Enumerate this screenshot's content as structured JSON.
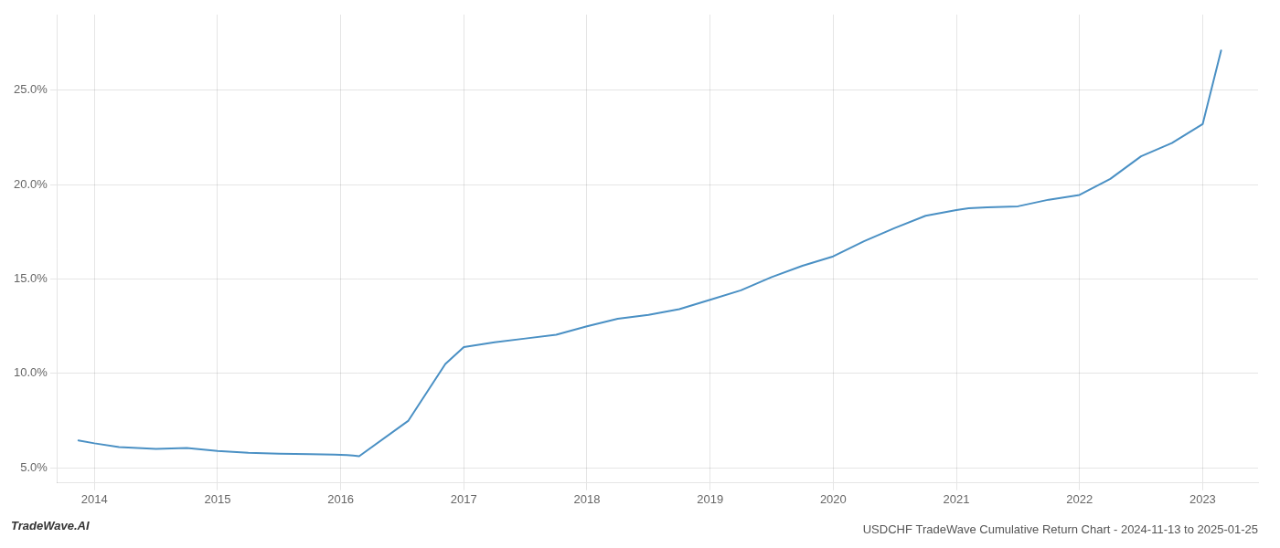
{
  "chart_data": {
    "type": "line",
    "title": "USDCHF TradeWave Cumulative Return Chart - 2024-11-13 to 2025-01-25",
    "annotations": [
      "TradeWave.AI"
    ],
    "x": [
      2013.87,
      2014.0,
      2014.2,
      2014.5,
      2014.75,
      2015.0,
      2015.25,
      2015.5,
      2015.75,
      2015.95,
      2016.05,
      2016.1,
      2016.15,
      2016.55,
      2016.7,
      2016.85,
      2017.0,
      2017.25,
      2017.5,
      2017.75,
      2018.0,
      2018.25,
      2018.5,
      2018.75,
      2019.0,
      2019.25,
      2019.5,
      2019.75,
      2020.0,
      2020.25,
      2020.5,
      2020.75,
      2021.0,
      2021.1,
      2021.25,
      2021.5,
      2021.75,
      2022.0,
      2022.25,
      2022.5,
      2022.75,
      2023.0,
      2023.15
    ],
    "values": [
      6.45,
      6.3,
      6.1,
      6.0,
      6.05,
      5.9,
      5.8,
      5.75,
      5.72,
      5.7,
      5.68,
      5.65,
      5.62,
      7.5,
      9.0,
      10.5,
      11.4,
      11.65,
      11.85,
      12.05,
      12.5,
      12.9,
      13.1,
      13.4,
      13.9,
      14.4,
      15.1,
      15.7,
      16.2,
      17.0,
      17.7,
      18.35,
      18.65,
      18.75,
      18.8,
      18.85,
      19.2,
      19.45,
      20.3,
      21.5,
      22.2,
      23.2,
      27.1
    ],
    "color": "#4a90c4",
    "xlim": [
      2013.7,
      2023.45
    ],
    "xticks": [
      2014,
      2015,
      2016,
      2017,
      2018,
      2019,
      2020,
      2021,
      2022,
      2023
    ],
    "ylim": [
      4.2,
      29.0
    ],
    "yticks": [
      {
        "value": 5.0,
        "label": "5.0%"
      },
      {
        "value": 10.0,
        "label": "10.0%"
      },
      {
        "value": 15.0,
        "label": "15.0%"
      },
      {
        "value": 20.0,
        "label": "20.0%"
      },
      {
        "value": 25.0,
        "label": "25.0%"
      }
    ],
    "grid": true
  }
}
